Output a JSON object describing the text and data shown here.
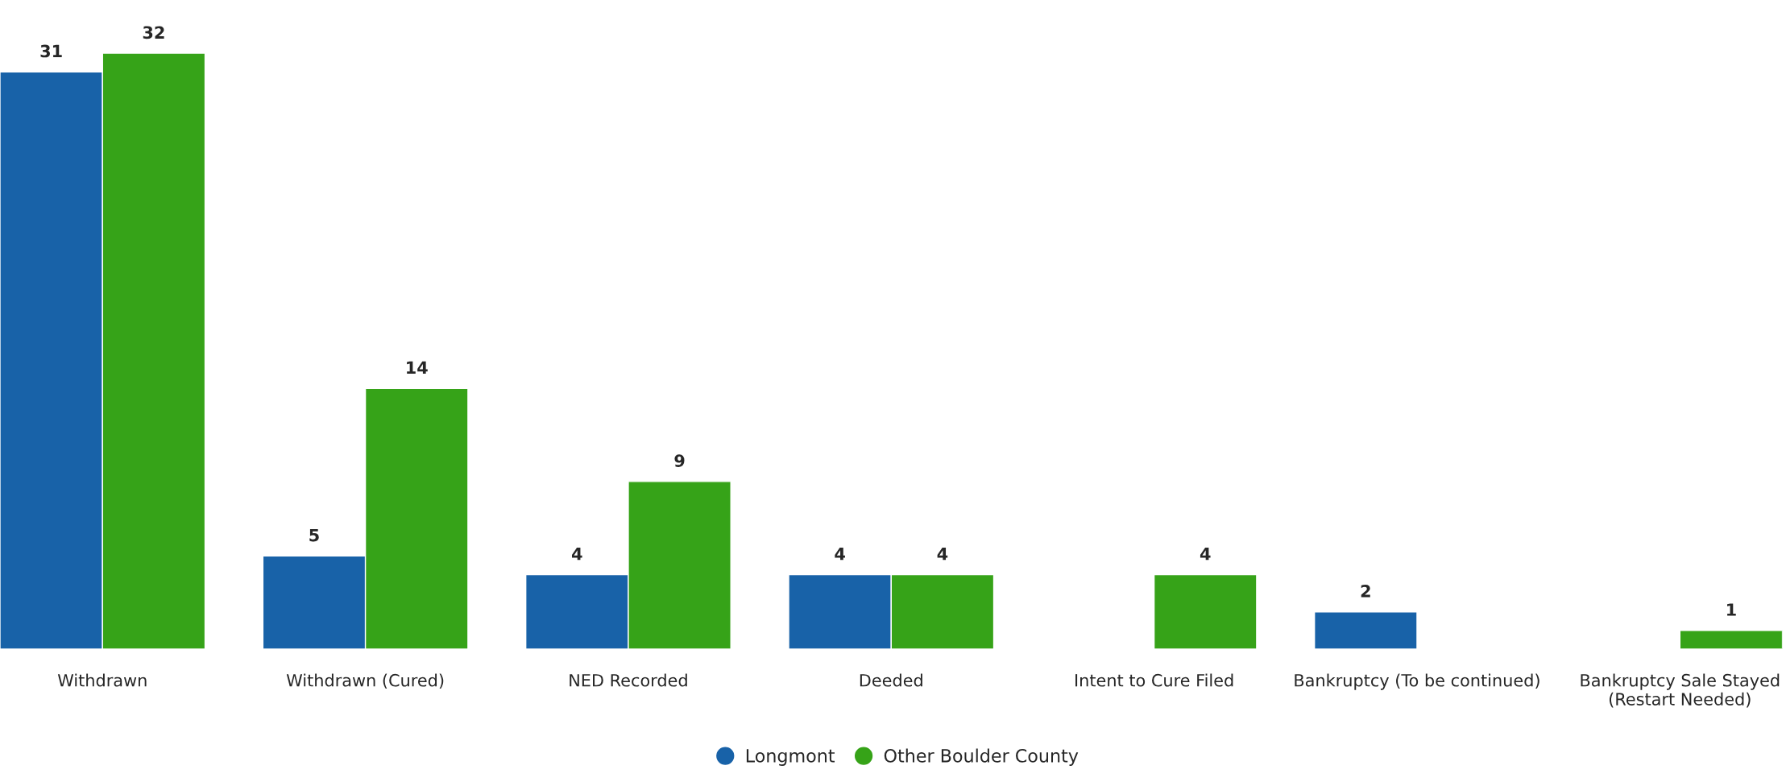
{
  "chart_data": {
    "type": "bar",
    "categories": [
      "Withdrawn",
      "Withdrawn (Cured)",
      "NED Recorded",
      "Deeded",
      "Intent to Cure Filed",
      "Bankruptcy (To be continued)",
      "Bankruptcy Sale Stayed\n(Restart Needed)"
    ],
    "series": [
      {
        "name": "Longmont",
        "color": "#1862a8",
        "values": [
          31,
          5,
          4,
          4,
          null,
          2,
          null
        ]
      },
      {
        "name": "Other Boulder County",
        "color": "#36a318",
        "values": [
          32,
          14,
          9,
          4,
          4,
          null,
          1
        ]
      }
    ],
    "data_labels": true,
    "grid": false,
    "legend": "bottom",
    "marker": "circle"
  }
}
